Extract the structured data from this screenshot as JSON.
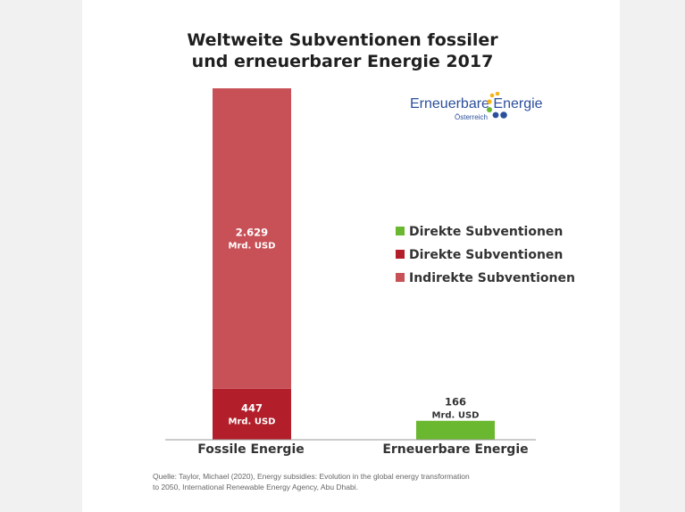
{
  "chart_data": {
    "type": "bar",
    "stacked": true,
    "title_line1": "Weltweite Subventionen fossiler",
    "title_line2": "und erneuerbarer Energie 2017",
    "categories": [
      "Fossile Energie",
      "Erneuerbare Energie"
    ],
    "series": [
      {
        "name": "Direkte Subventionen",
        "color": "#6ab82f",
        "values": [
          0,
          166
        ],
        "labels": [
          "",
          "166"
        ],
        "unit": [
          "",
          "Mrd. USD"
        ]
      },
      {
        "name": "Direkte Subventionen",
        "color": "#b21f2a",
        "values": [
          447,
          0
        ],
        "labels": [
          "447",
          ""
        ],
        "unit": [
          "Mrd. USD",
          ""
        ]
      },
      {
        "name": "Indirekte Subventionen",
        "color": "#c85157",
        "values": [
          2629,
          0
        ],
        "labels": [
          "2.629",
          ""
        ],
        "unit": [
          "Mrd. USD",
          ""
        ]
      }
    ],
    "legend_position": "right",
    "grid": false
  },
  "logo": {
    "text_a": "Erneuerbare",
    "text_b": "Energie",
    "sub": "Österreich",
    "colors": [
      "#f2b51b",
      "#6ab82f",
      "#2c4f9c"
    ]
  },
  "source_line1": "Quelle: Taylor, Michael (2020), Energy subsidies: Evolution in the global energy transformation",
  "source_line2": "to 2050, International Renewable Energy Agency, Abu Dhabi."
}
